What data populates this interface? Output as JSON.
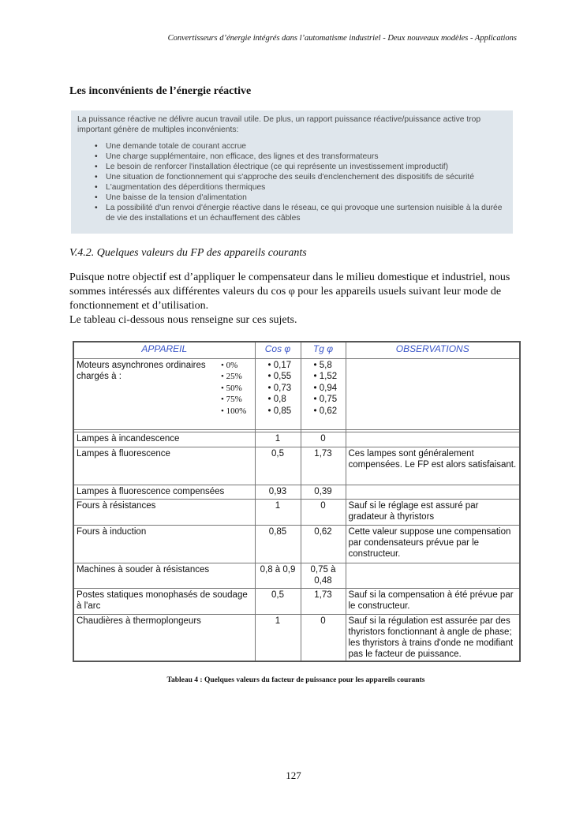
{
  "header": {
    "running_title": "Convertisseurs d’énergie intégrés dans l’automatisme industriel - Deux nouveaux modèles - Applications"
  },
  "section_title": "Les inconvénients de l’énergie réactive",
  "info_box": {
    "intro": "La puissance réactive ne délivre aucun travail utile. De plus, un rapport puissance réactive/puissance active trop important génère de multiples inconvénients:",
    "bullets": [
      "Une demande totale de courant accrue",
      "Une charge supplémentaire, non efficace, des lignes et des transformateurs",
      "Le besoin de renforcer l'installation électrique (ce qui représente un investissement improductif)",
      "Une situation de fonctionnement qui s'approche des seuils d'enclenchement des dispositifs de sécurité",
      "L'augmentation des déperditions thermiques",
      "Une baisse de la tension d'alimentation",
      "La possibilité d'un renvoi d'énergie réactive dans le réseau, ce qui provoque une surtension nuisible à la durée de vie des installations et un échauffement des câbles"
    ]
  },
  "subsection_title": "V.4.2. Quelques valeurs du FP des appareils courants",
  "paragraphs": [
    "Puisque notre objectif est d’appliquer le compensateur dans le milieu domestique et industriel, nous sommes intéressés aux différentes valeurs du cos φ pour les appareils usuels suivant leur mode de fonctionnement et d’utilisation.",
    "Le tableau ci-dessous nous renseigne sur ces sujets."
  ],
  "table": {
    "headers": [
      "APPAREIL",
      "Cos φ",
      "Tg φ",
      "OBSERVATIONS"
    ],
    "motor_row": {
      "label": "Moteurs asynchrones ordinaires chargés à :",
      "loads": [
        "0%",
        "25%",
        "50%",
        "75%",
        "100%"
      ],
      "cos": [
        "0,17",
        "0,55",
        "0,73",
        "0,8",
        "0,85"
      ],
      "tg": [
        "5,8",
        "1,52",
        "0,94",
        "0,75",
        "0,62"
      ]
    },
    "rows": [
      {
        "appareil": "Lampes à incandescence",
        "cos": "1",
        "tg": "0"
      },
      {
        "appareil": "Lampes à fluorescence",
        "cos": "0,5",
        "tg": "1,73",
        "observations": "Ces lampes sont généralement compensées. Le FP est alors satisfaisant."
      },
      {
        "appareil": "Lampes à fluorescence compensées",
        "cos": "0,93",
        "tg": "0,39"
      },
      {
        "appareil": "Fours à résistances",
        "cos": "1",
        "tg": "0",
        "observations": "Sauf si le réglage est assuré par gradateur à thyristors"
      },
      {
        "appareil": "Fours à induction",
        "cos": "0,85",
        "tg": "0,62",
        "observations": "Cette valeur suppose une compensation par condensateurs prévue par le constructeur."
      },
      {
        "appareil": "Machines à souder à résistances",
        "cos": "0,8 à 0,9",
        "tg": "0,75 à 0,48"
      },
      {
        "appareil": "Postes statiques monophasés de soudage à l'arc",
        "cos": "0,5",
        "tg": "1,73",
        "observations": "Sauf si la compensation à été prévue par le constructeur."
      },
      {
        "appareil": "Chaudières à thermoplongeurs",
        "cos": "1",
        "tg": "0",
        "observations": "Sauf si la régulation est assurée par des thyristors fonctionnant à angle de phase; les thyristors à trains d'onde ne modifiant pas le facteur de puissance."
      }
    ]
  },
  "caption": "Tableau 4 : Quelques valeurs du facteur de puissance pour les appareils courants",
  "page_number": "127"
}
